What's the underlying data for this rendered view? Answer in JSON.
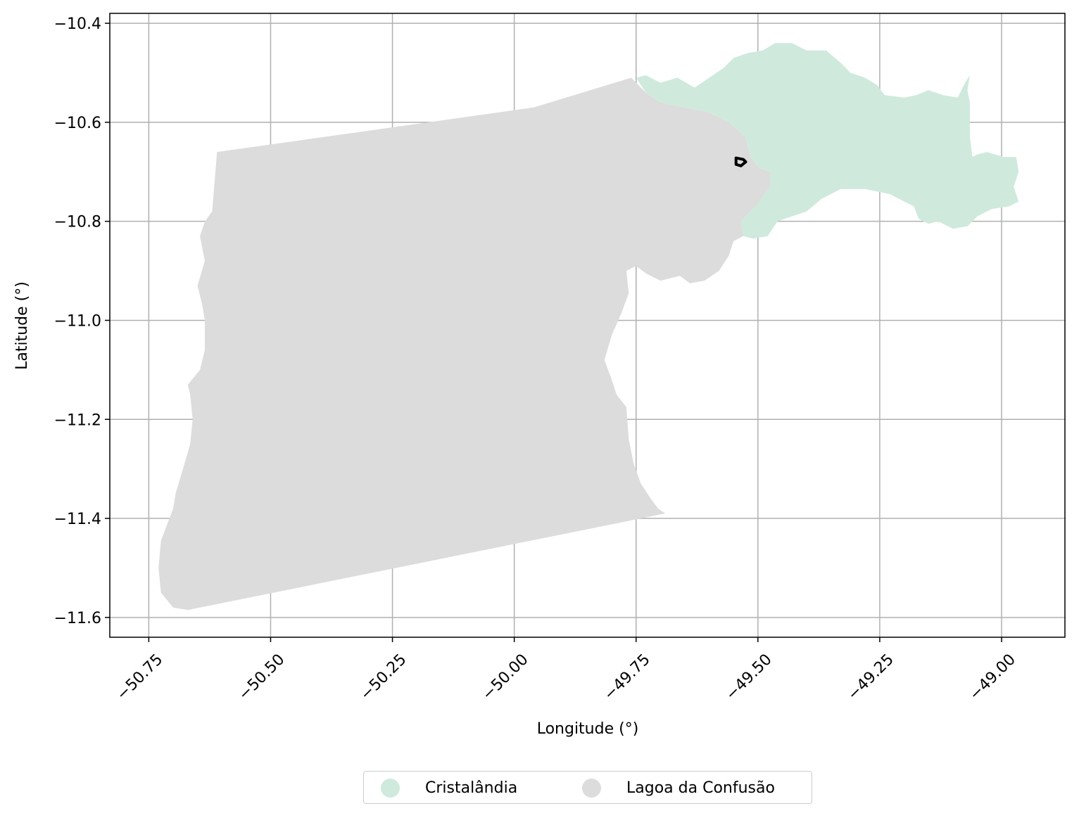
{
  "chart_data": {
    "type": "map",
    "xlabel": "Longitude (°)",
    "ylabel": "Latitude (°)",
    "xlim": [
      -50.83,
      -48.87
    ],
    "ylim": [
      -11.64,
      -10.38
    ],
    "x_ticks": [
      -50.75,
      -50.5,
      -50.25,
      -50.0,
      -49.75,
      -49.5,
      -49.25,
      -49.0
    ],
    "x_tick_labels": [
      "−50.75",
      "−50.50",
      "−50.25",
      "−50.00",
      "−49.75",
      "−49.50",
      "−49.25",
      "−49.00"
    ],
    "y_ticks": [
      -10.4,
      -10.6,
      -10.8,
      -11.0,
      -11.2,
      -11.4,
      -11.6
    ],
    "y_tick_labels": [
      "−10.4",
      "−10.6",
      "−10.8",
      "−11.0",
      "−11.2",
      "−11.4",
      "−11.6"
    ],
    "grid": true,
    "legend_placement": "bottom-center",
    "regions": [
      {
        "name": "Cristalândia",
        "color": "#cfeadd",
        "boundary": [
          [
            -49.75,
            -10.51
          ],
          [
            -49.73,
            -10.505
          ],
          [
            -49.7,
            -10.52
          ],
          [
            -49.665,
            -10.51
          ],
          [
            -49.63,
            -10.53
          ],
          [
            -49.6,
            -10.51
          ],
          [
            -49.57,
            -10.49
          ],
          [
            -49.55,
            -10.47
          ],
          [
            -49.52,
            -10.46
          ],
          [
            -49.49,
            -10.455
          ],
          [
            -49.465,
            -10.44
          ],
          [
            -49.43,
            -10.44
          ],
          [
            -49.4,
            -10.455
          ],
          [
            -49.36,
            -10.455
          ],
          [
            -49.33,
            -10.48
          ],
          [
            -49.31,
            -10.5
          ],
          [
            -49.28,
            -10.51
          ],
          [
            -49.255,
            -10.525
          ],
          [
            -49.24,
            -10.545
          ],
          [
            -49.2,
            -10.55
          ],
          [
            -49.175,
            -10.545
          ],
          [
            -49.15,
            -10.535
          ],
          [
            -49.12,
            -10.545
          ],
          [
            -49.09,
            -10.55
          ],
          [
            -49.075,
            -10.52
          ],
          [
            -49.065,
            -10.505
          ],
          [
            -49.07,
            -10.535
          ],
          [
            -49.065,
            -10.56
          ],
          [
            -49.065,
            -10.63
          ],
          [
            -49.06,
            -10.67
          ],
          [
            -49.05,
            -10.665
          ],
          [
            -49.03,
            -10.66
          ],
          [
            -48.995,
            -10.67
          ],
          [
            -48.97,
            -10.67
          ],
          [
            -48.965,
            -10.7
          ],
          [
            -48.975,
            -10.73
          ],
          [
            -48.965,
            -10.76
          ],
          [
            -48.985,
            -10.77
          ],
          [
            -49.02,
            -10.775
          ],
          [
            -49.05,
            -10.79
          ],
          [
            -49.07,
            -10.81
          ],
          [
            -49.1,
            -10.815
          ],
          [
            -49.13,
            -10.8
          ],
          [
            -49.15,
            -10.805
          ],
          [
            -49.17,
            -10.795
          ],
          [
            -49.18,
            -10.77
          ],
          [
            -49.23,
            -10.745
          ],
          [
            -49.28,
            -10.735
          ],
          [
            -49.33,
            -10.735
          ],
          [
            -49.37,
            -10.755
          ],
          [
            -49.4,
            -10.78
          ],
          [
            -49.43,
            -10.79
          ],
          [
            -49.46,
            -10.8
          ],
          [
            -49.48,
            -10.83
          ],
          [
            -49.51,
            -10.835
          ],
          [
            -49.53,
            -10.83
          ],
          [
            -49.535,
            -10.8
          ],
          [
            -49.505,
            -10.77
          ],
          [
            -49.475,
            -10.73
          ],
          [
            -49.475,
            -10.7
          ],
          [
            -49.5,
            -10.69
          ],
          [
            -49.515,
            -10.67
          ],
          [
            -49.525,
            -10.63
          ],
          [
            -49.56,
            -10.6
          ],
          [
            -49.6,
            -10.58
          ],
          [
            -49.65,
            -10.57
          ],
          [
            -49.7,
            -10.56
          ],
          [
            -49.73,
            -10.54
          ],
          [
            -49.75,
            -10.51
          ]
        ]
      },
      {
        "name": "Lagoa da Confusão",
        "color": "#dcdcdc",
        "boundary": [
          [
            -50.61,
            -10.66
          ],
          [
            -49.96,
            -10.57
          ],
          [
            -49.76,
            -10.51
          ],
          [
            -49.73,
            -10.54
          ],
          [
            -49.7,
            -10.56
          ],
          [
            -49.65,
            -10.57
          ],
          [
            -49.6,
            -10.58
          ],
          [
            -49.56,
            -10.6
          ],
          [
            -49.525,
            -10.63
          ],
          [
            -49.515,
            -10.67
          ],
          [
            -49.5,
            -10.69
          ],
          [
            -49.475,
            -10.7
          ],
          [
            -49.455,
            -10.72
          ],
          [
            -49.45,
            -10.745
          ],
          [
            -49.475,
            -10.75
          ],
          [
            -49.505,
            -10.77
          ],
          [
            -49.535,
            -10.8
          ],
          [
            -49.53,
            -10.83
          ],
          [
            -49.55,
            -10.84
          ],
          [
            -49.56,
            -10.87
          ],
          [
            -49.58,
            -10.9
          ],
          [
            -49.61,
            -10.92
          ],
          [
            -49.64,
            -10.925
          ],
          [
            -49.66,
            -10.91
          ],
          [
            -49.7,
            -10.92
          ],
          [
            -49.73,
            -10.905
          ],
          [
            -49.75,
            -10.89
          ],
          [
            -49.77,
            -10.9
          ],
          [
            -49.765,
            -10.945
          ],
          [
            -49.78,
            -10.985
          ],
          [
            -49.8,
            -11.03
          ],
          [
            -49.815,
            -11.08
          ],
          [
            -49.8,
            -11.12
          ],
          [
            -49.79,
            -11.15
          ],
          [
            -49.77,
            -11.175
          ],
          [
            -49.765,
            -11.24
          ],
          [
            -49.755,
            -11.29
          ],
          [
            -49.74,
            -11.33
          ],
          [
            -49.72,
            -11.36
          ],
          [
            -49.705,
            -11.38
          ],
          [
            -49.69,
            -11.39
          ],
          [
            -50.67,
            -11.585
          ],
          [
            -50.7,
            -11.58
          ],
          [
            -50.725,
            -11.55
          ],
          [
            -50.73,
            -11.5
          ],
          [
            -50.725,
            -11.445
          ],
          [
            -50.7,
            -11.38
          ],
          [
            -50.695,
            -11.35
          ],
          [
            -50.68,
            -11.3
          ],
          [
            -50.665,
            -11.25
          ],
          [
            -50.66,
            -11.2
          ],
          [
            -50.665,
            -11.15
          ],
          [
            -50.67,
            -11.13
          ],
          [
            -50.645,
            -11.1
          ],
          [
            -50.635,
            -11.06
          ],
          [
            -50.635,
            -11.0
          ],
          [
            -50.64,
            -10.97
          ],
          [
            -50.65,
            -10.93
          ],
          [
            -50.635,
            -10.88
          ],
          [
            -50.645,
            -10.83
          ],
          [
            -50.635,
            -10.8
          ],
          [
            -50.62,
            -10.78
          ],
          [
            -50.615,
            -10.72
          ],
          [
            -50.61,
            -10.66
          ]
        ]
      }
    ],
    "marker": {
      "shape": "outline",
      "color": "#000000",
      "boundary": [
        [
          -49.545,
          -10.672
        ],
        [
          -49.53,
          -10.675
        ],
        [
          -49.525,
          -10.68
        ],
        [
          -49.535,
          -10.688
        ],
        [
          -49.545,
          -10.685
        ],
        [
          -49.545,
          -10.672
        ]
      ]
    }
  },
  "legend": {
    "items": [
      {
        "label": "Cristalândia",
        "color": "#cfeadd"
      },
      {
        "label": "Lagoa da Confusão",
        "color": "#dcdcdc"
      }
    ]
  }
}
